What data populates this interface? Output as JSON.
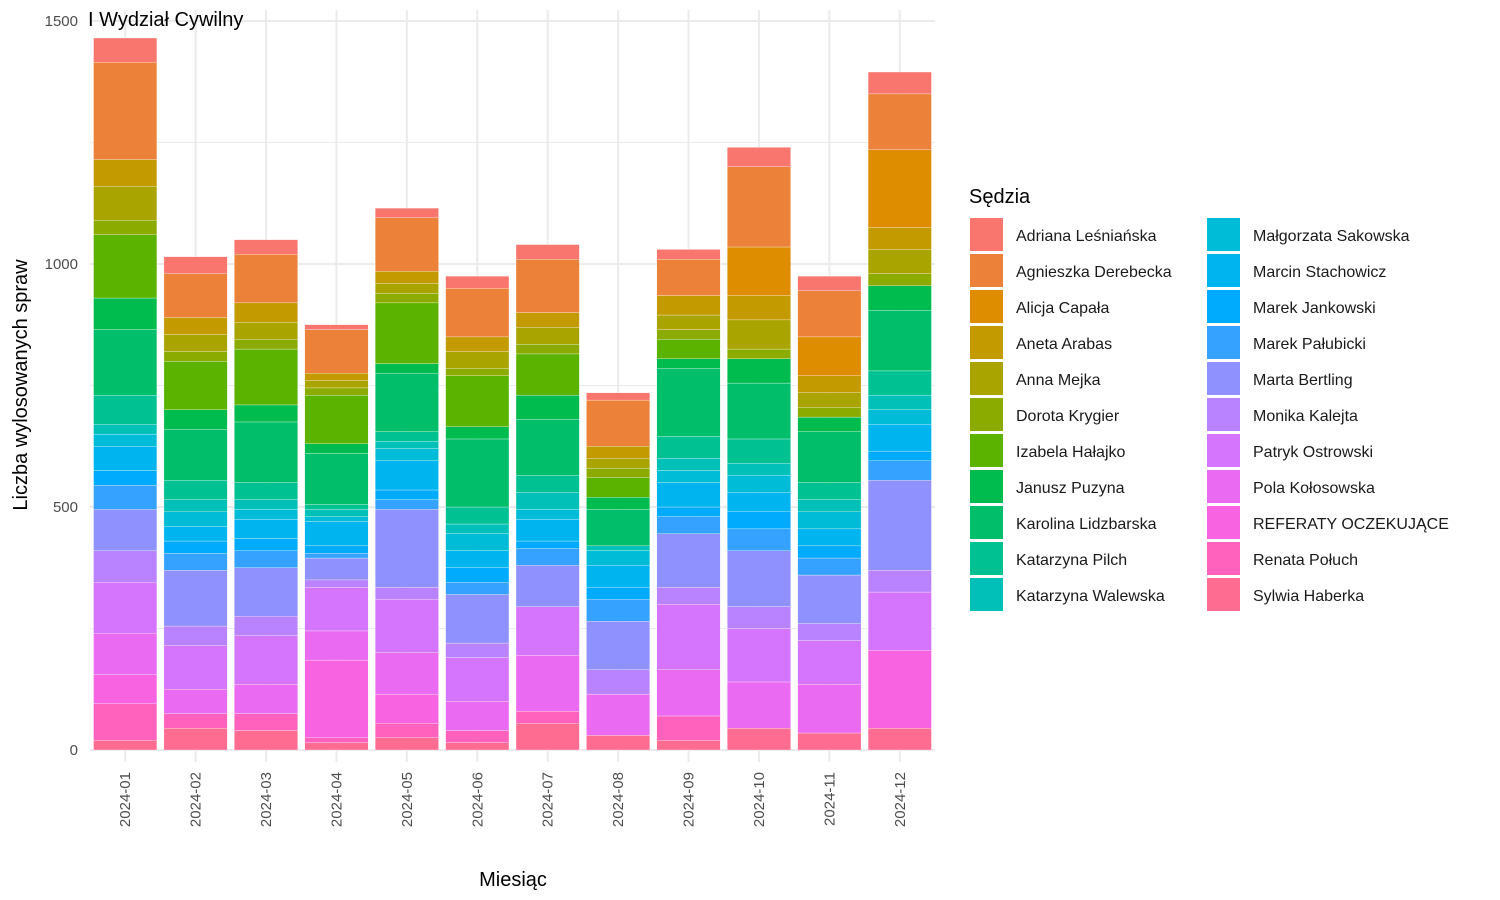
{
  "chart_data": {
    "type": "bar",
    "stacked": true,
    "title": "I Wydział Cywilny",
    "xlabel": "Miesiąc",
    "ylabel": "Liczba wylosowanych spraw",
    "ylim": [
      0,
      1500
    ],
    "yticks": [
      0,
      500,
      1000,
      1500
    ],
    "grid": true,
    "legend_title": "Sędzia",
    "legend_position": "right",
    "categories": [
      "2024-01",
      "2024-02",
      "2024-03",
      "2024-04",
      "2024-05",
      "2024-06",
      "2024-07",
      "2024-08",
      "2024-09",
      "2024-10",
      "2024-11",
      "2024-12"
    ],
    "series": [
      {
        "name": "Sylwia Haberka",
        "color": "#FF6C91",
        "values": [
          20,
          45,
          40,
          15,
          25,
          15,
          55,
          30,
          20,
          45,
          35,
          45
        ]
      },
      {
        "name": "Renata Połuch",
        "color": "#FF62BC",
        "values": [
          75,
          30,
          35,
          10,
          30,
          25,
          25,
          0,
          50,
          0,
          0,
          0
        ]
      },
      {
        "name": "REFERATY OCZEKUJĄCE",
        "color": "#F763E0",
        "values": [
          60,
          0,
          0,
          160,
          60,
          0,
          0,
          0,
          0,
          0,
          0,
          160
        ]
      },
      {
        "name": "Pola Kołosowska",
        "color": "#EA6AF1",
        "values": [
          85,
          50,
          60,
          60,
          85,
          60,
          115,
          85,
          95,
          95,
          100,
          0
        ]
      },
      {
        "name": "Patryk Ostrowski",
        "color": "#D575FE",
        "values": [
          105,
          90,
          100,
          90,
          110,
          90,
          100,
          0,
          135,
          110,
          90,
          120
        ]
      },
      {
        "name": "Monika Kalejta",
        "color": "#B983FF",
        "values": [
          65,
          40,
          40,
          15,
          25,
          30,
          0,
          50,
          35,
          45,
          35,
          45
        ]
      },
      {
        "name": "Marta Bertling",
        "color": "#8F91FF",
        "values": [
          85,
          115,
          100,
          45,
          160,
          100,
          85,
          100,
          110,
          115,
          100,
          185
        ]
      },
      {
        "name": "Marek Pałubicki",
        "color": "#35A2FF",
        "values": [
          50,
          35,
          35,
          10,
          20,
          25,
          35,
          45,
          35,
          45,
          35,
          40
        ]
      },
      {
        "name": "Marek Jankowski",
        "color": "#00ABFD",
        "values": [
          30,
          25,
          25,
          15,
          20,
          30,
          15,
          25,
          20,
          35,
          25,
          20
        ]
      },
      {
        "name": "Marcin Stachowicz",
        "color": "#00B4EF",
        "values": [
          50,
          30,
          40,
          50,
          60,
          35,
          45,
          45,
          50,
          40,
          35,
          55
        ]
      },
      {
        "name": "Małgorzata Sakowska",
        "color": "#00BCD6",
        "values": [
          25,
          30,
          20,
          10,
          25,
          35,
          20,
          30,
          25,
          35,
          35,
          30
        ]
      },
      {
        "name": "Katarzyna Walewska",
        "color": "#00C0B8",
        "values": [
          20,
          25,
          20,
          15,
          15,
          20,
          35,
          10,
          25,
          25,
          25,
          30
        ]
      },
      {
        "name": "Katarzyna Pilch",
        "color": "#00C192",
        "values": [
          60,
          40,
          35,
          10,
          20,
          35,
          35,
          0,
          45,
          50,
          35,
          50
        ]
      },
      {
        "name": "Karolina Lidzbarska",
        "color": "#00BE6A",
        "values": [
          135,
          105,
          125,
          105,
          120,
          140,
          115,
          75,
          140,
          115,
          105,
          125
        ]
      },
      {
        "name": "Janusz Puzyna",
        "color": "#00BB4E",
        "values": [
          65,
          40,
          35,
          20,
          20,
          25,
          50,
          25,
          20,
          50,
          30,
          50
        ]
      },
      {
        "name": "Izabela Hałajko",
        "color": "#5BB300",
        "values": [
          130,
          100,
          115,
          100,
          125,
          105,
          85,
          40,
          40,
          0,
          0,
          0
        ]
      },
      {
        "name": "Dorota Krygier",
        "color": "#8BAB00",
        "values": [
          30,
          20,
          20,
          15,
          20,
          15,
          20,
          20,
          20,
          20,
          20,
          25
        ]
      },
      {
        "name": "Anna Mejka",
        "color": "#AAA400",
        "values": [
          70,
          35,
          35,
          15,
          20,
          35,
          35,
          20,
          30,
          60,
          30,
          50
        ]
      },
      {
        "name": "Aneta Arabas",
        "color": "#C39A00",
        "values": [
          55,
          35,
          40,
          15,
          25,
          30,
          30,
          25,
          40,
          50,
          35,
          45
        ]
      },
      {
        "name": "Alicja Capała",
        "color": "#DE8C00",
        "values": [
          0,
          0,
          0,
          0,
          0,
          0,
          0,
          0,
          0,
          100,
          80,
          160
        ]
      },
      {
        "name": "Agnieszka Derebecka",
        "color": "#EC8239",
        "values": [
          200,
          90,
          100,
          90,
          110,
          100,
          110,
          95,
          75,
          165,
          95,
          115
        ]
      },
      {
        "name": "Adriana Leśniańska",
        "color": "#F8766D",
        "values": [
          50,
          35,
          30,
          10,
          20,
          25,
          30,
          15,
          20,
          40,
          30,
          45
        ]
      }
    ]
  }
}
